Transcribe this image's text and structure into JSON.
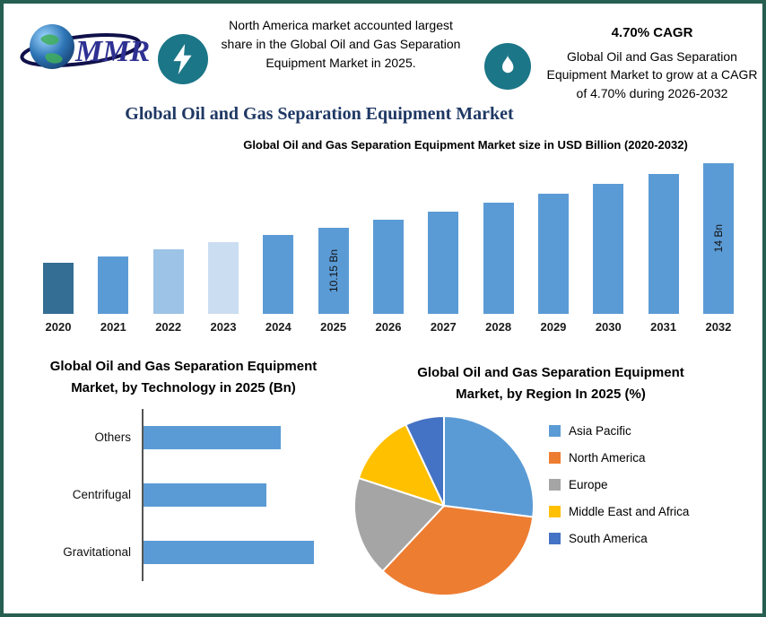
{
  "border_color": "#265F51",
  "accent_teal": "#1B7687",
  "header": {
    "logo_text": "MMR",
    "note": "North America market accounted largest share in the Global Oil and Gas Separation Equipment Market in 2025.",
    "cagr_value": "4.70% CAGR",
    "cagr_note": "Global Oil and Gas Separation Equipment Market to grow at a CAGR of 4.70% during 2026-2032",
    "title": "Global Oil and Gas Separation Equipment Market"
  },
  "chart_data": [
    {
      "id": "market-size",
      "type": "bar",
      "title": "Global Oil and Gas Separation Equipment Market size in USD Billion (2020-2032)",
      "categories": [
        "2020",
        "2021",
        "2022",
        "2023",
        "2024",
        "2025",
        "2026",
        "2027",
        "2028",
        "2029",
        "2030",
        "2031",
        "2032"
      ],
      "values": [
        8.05,
        8.45,
        8.85,
        9.3,
        9.7,
        10.15,
        10.63,
        11.13,
        11.65,
        12.2,
        12.77,
        13.37,
        14.0
      ],
      "unit": "USD Billion",
      "data_labels": {
        "2025": "10.15 Bn",
        "2032": "14 Bn"
      },
      "bar_colors": {
        "2020": "#346E94",
        "2021": "#5B9BD5",
        "2022": "#9DC3E6",
        "2023": "#CBDDF1",
        "default": "#5B9BD5"
      },
      "ylim": [
        0,
        14
      ],
      "grid": false,
      "legend": false
    },
    {
      "id": "by-technology",
      "type": "bar_horizontal",
      "title": "Global Oil and Gas Separation Equipment Market, by Technology in 2025 (Bn)",
      "categories": [
        "Others",
        "Centrifugal",
        "Gravitational"
      ],
      "values": [
        2.9,
        2.6,
        3.6
      ],
      "unit": "Bn",
      "bar_color": "#5B9BD5",
      "grid": false,
      "legend": false
    },
    {
      "id": "by-region",
      "type": "pie",
      "title": "Global Oil and Gas Separation Equipment Market, by Region In 2025 (%)",
      "slices": [
        {
          "label": "Asia Pacific",
          "value": 27,
          "color": "#5B9BD5"
        },
        {
          "label": "North America",
          "value": 35,
          "color": "#ED7D31"
        },
        {
          "label": "Europe",
          "value": 18,
          "color": "#A5A5A5"
        },
        {
          "label": "Middle East and Africa",
          "value": 13,
          "color": "#FFC000"
        },
        {
          "label": "South America",
          "value": 7,
          "color": "#4472C4"
        }
      ],
      "unit": "%",
      "legend_position": "right"
    }
  ]
}
